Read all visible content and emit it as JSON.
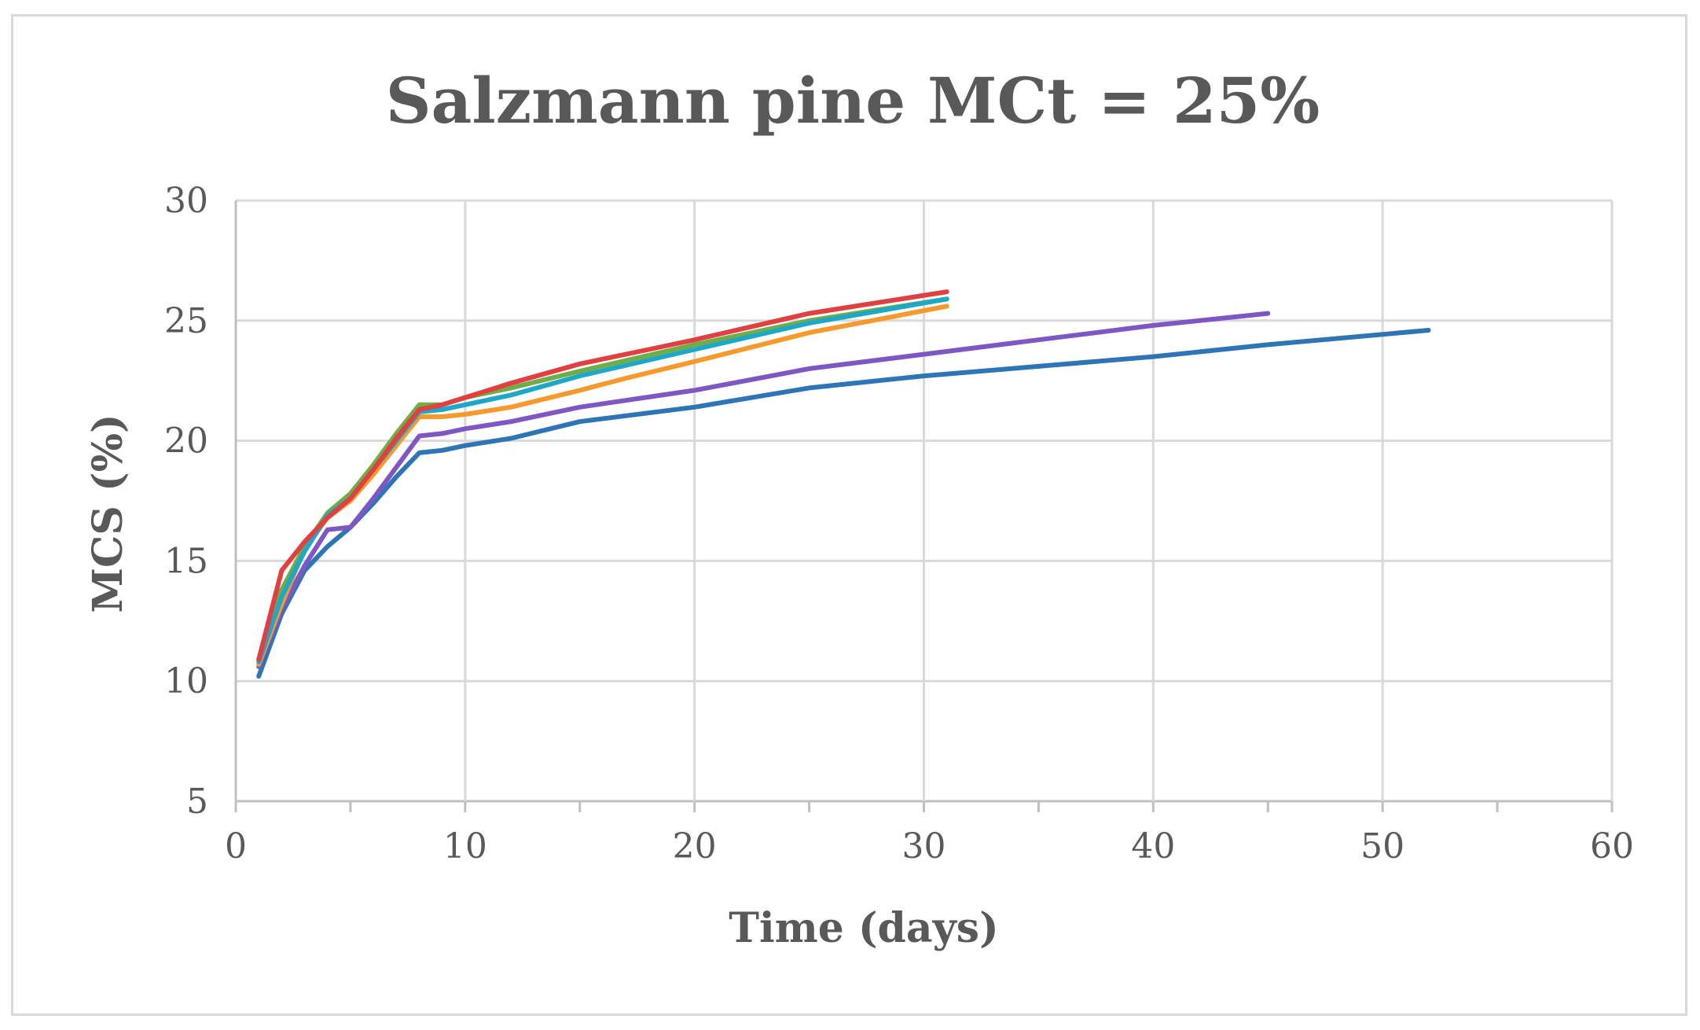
{
  "chart_data": {
    "type": "line",
    "title": "Salzmann pine MCt = 25%",
    "xlabel": "Time (days)",
    "ylabel": "MCS (%)",
    "xlim": [
      0,
      60
    ],
    "ylim": [
      5,
      30
    ],
    "xticks": [
      0,
      10,
      20,
      30,
      40,
      50,
      60
    ],
    "yticks": [
      5,
      10,
      15,
      20,
      25,
      30
    ],
    "grid": true,
    "legend": "none",
    "series": [
      {
        "name": "series-blue",
        "color": "#2e75b6",
        "x": [
          1,
          2,
          3,
          4,
          5,
          6,
          7,
          8,
          9,
          10,
          12,
          15,
          20,
          25,
          30,
          35,
          40,
          45,
          52
        ],
        "y": [
          10.2,
          12.8,
          14.6,
          15.6,
          16.4,
          17.4,
          18.5,
          19.5,
          19.6,
          19.8,
          20.1,
          20.8,
          21.4,
          22.2,
          22.7,
          23.1,
          23.5,
          24.0,
          24.6
        ]
      },
      {
        "name": "series-purple",
        "color": "#7e57c2",
        "x": [
          1,
          2,
          3,
          4,
          5,
          6,
          7,
          8,
          9,
          10,
          12,
          15,
          20,
          25,
          30,
          35,
          40,
          45
        ],
        "y": [
          10.6,
          13.0,
          14.8,
          16.3,
          16.4,
          17.6,
          18.9,
          20.2,
          20.3,
          20.5,
          20.8,
          21.4,
          22.1,
          23.0,
          23.6,
          24.2,
          24.8,
          25.3
        ]
      },
      {
        "name": "series-orange",
        "color": "#f79a2e",
        "x": [
          1,
          2,
          3,
          4,
          5,
          6,
          7,
          8,
          9,
          10,
          12,
          15,
          17,
          20,
          25,
          31
        ],
        "y": [
          10.7,
          13.2,
          15.5,
          16.8,
          17.5,
          18.6,
          19.8,
          21.0,
          21.0,
          21.1,
          21.4,
          22.1,
          22.6,
          23.3,
          24.5,
          25.6
        ]
      },
      {
        "name": "series-green",
        "color": "#70ad47",
        "x": [
          1,
          2,
          3,
          4,
          5,
          6,
          7,
          8,
          9,
          10,
          12,
          15,
          20,
          25,
          31
        ],
        "y": [
          10.9,
          13.8,
          15.6,
          17.0,
          17.8,
          19.0,
          20.3,
          21.5,
          21.5,
          21.8,
          22.2,
          22.9,
          24.0,
          25.0,
          25.9
        ]
      },
      {
        "name": "series-cyan",
        "color": "#1fa8c6",
        "x": [
          1,
          2,
          3,
          4,
          5,
          6,
          7,
          8,
          9,
          10,
          12,
          15,
          20,
          25,
          31
        ],
        "y": [
          10.8,
          13.5,
          15.4,
          16.9,
          17.6,
          18.8,
          20.0,
          21.2,
          21.3,
          21.5,
          21.9,
          22.7,
          23.8,
          24.9,
          25.9
        ]
      },
      {
        "name": "series-red",
        "color": "#e04040",
        "x": [
          1,
          2,
          3,
          4,
          5,
          6,
          7,
          8,
          9,
          10,
          12,
          15,
          18,
          20,
          25,
          31
        ],
        "y": [
          10.9,
          14.6,
          15.8,
          16.8,
          17.6,
          18.8,
          20.1,
          21.3,
          21.5,
          21.8,
          22.4,
          23.2,
          23.8,
          24.2,
          25.3,
          26.2
        ]
      }
    ]
  }
}
